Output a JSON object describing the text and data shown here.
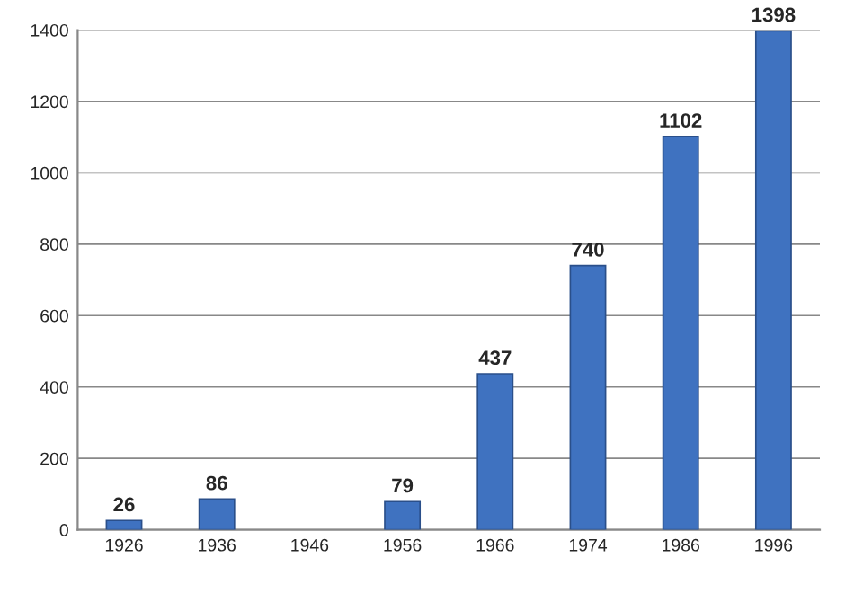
{
  "chart_data": {
    "type": "bar",
    "categories": [
      "1926",
      "1936",
      "1946",
      "1956",
      "1966",
      "1974",
      "1986",
      "1996"
    ],
    "values": [
      26,
      86,
      null,
      79,
      437,
      740,
      1102,
      1398
    ],
    "color": "#3f72c0",
    "ylim": [
      0,
      1400
    ],
    "yticks": [
      0,
      200,
      400,
      600,
      800,
      1000,
      1200,
      1400
    ],
    "grid": "y",
    "data_labels": true
  }
}
